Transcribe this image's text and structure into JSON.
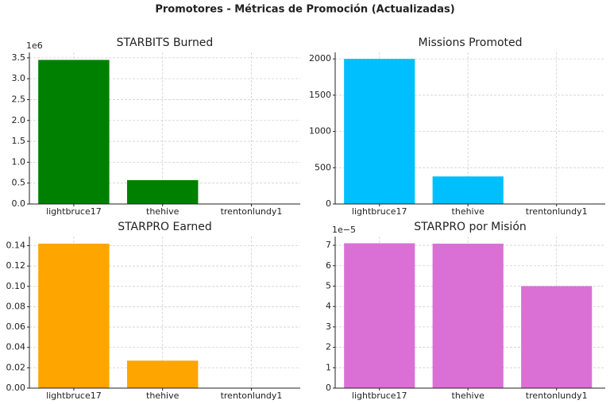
{
  "title": "Promotores - Métricas de Promoción (Actualizadas)",
  "chart_data": [
    {
      "type": "bar",
      "title": "STARBITS Burned",
      "categories": [
        "lightbruce17",
        "thehive",
        "trentonlundy1"
      ],
      "values": [
        3450000,
        570000,
        0
      ],
      "color": "#008000",
      "ylim": [
        0,
        3630000
      ],
      "y_offset_label": "1e6",
      "yticks": [
        {
          "value": 0,
          "label": "0.0"
        },
        {
          "value": 500000,
          "label": "0.5"
        },
        {
          "value": 1000000,
          "label": "1.0"
        },
        {
          "value": 1500000,
          "label": "1.5"
        },
        {
          "value": 2000000,
          "label": "2.0"
        },
        {
          "value": 2500000,
          "label": "2.5"
        },
        {
          "value": 3000000,
          "label": "3.0"
        },
        {
          "value": 3500000,
          "label": "3.5"
        }
      ],
      "grid": true
    },
    {
      "type": "bar",
      "title": "Missions Promoted",
      "categories": [
        "lightbruce17",
        "thehive",
        "trentonlundy1"
      ],
      "values": [
        2000,
        380,
        0
      ],
      "color": "#00bfff",
      "ylim": [
        0,
        2090
      ],
      "yticks": [
        0,
        500,
        1000,
        1500,
        2000
      ],
      "grid": true
    },
    {
      "type": "bar",
      "title": "STARPRO Earned",
      "categories": [
        "lightbruce17",
        "thehive",
        "trentonlundy1"
      ],
      "values": [
        0.142,
        0.027,
        0
      ],
      "color": "#ffa500",
      "ylim": [
        0,
        0.149
      ],
      "yticks": [
        {
          "value": 0,
          "label": "0.00"
        },
        {
          "value": 0.02,
          "label": "0.02"
        },
        {
          "value": 0.04,
          "label": "0.04"
        },
        {
          "value": 0.06,
          "label": "0.06"
        },
        {
          "value": 0.08,
          "label": "0.08"
        },
        {
          "value": 0.1,
          "label": "0.10"
        },
        {
          "value": 0.12,
          "label": "0.12"
        },
        {
          "value": 0.14,
          "label": "0.14"
        }
      ],
      "grid": true
    },
    {
      "type": "bar",
      "title": "STARPRO por Misión",
      "categories": [
        "lightbruce17",
        "thehive",
        "trentonlundy1"
      ],
      "values": [
        7.1e-05,
        7.08e-05,
        5e-05
      ],
      "color": "#da70d6",
      "ylim": [
        0,
        7.43e-05
      ],
      "y_offset_label": "1e−5",
      "yticks": [
        {
          "value": 0,
          "label": "0"
        },
        {
          "value": 1e-05,
          "label": "1"
        },
        {
          "value": 2e-05,
          "label": "2"
        },
        {
          "value": 3e-05,
          "label": "3"
        },
        {
          "value": 4e-05,
          "label": "4"
        },
        {
          "value": 5e-05,
          "label": "5"
        },
        {
          "value": 6e-05,
          "label": "6"
        },
        {
          "value": 7e-05,
          "label": "7"
        }
      ],
      "grid": true
    }
  ]
}
